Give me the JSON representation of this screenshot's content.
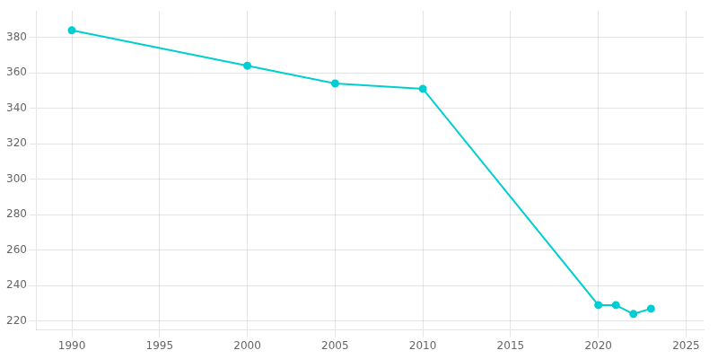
{
  "chart_data": {
    "type": "line",
    "x": [
      1990,
      2000,
      2005,
      2010,
      2020,
      2021,
      2022,
      2023
    ],
    "values": [
      384,
      364,
      354,
      351,
      229,
      229,
      224,
      227
    ],
    "color": "#00CED1",
    "marker": "circle",
    "xlim": [
      1988,
      2026
    ],
    "ylim": [
      215,
      395
    ],
    "xticks": [
      1990,
      1995,
      2000,
      2005,
      2010,
      2015,
      2020,
      2025
    ],
    "yticks": [
      220,
      240,
      260,
      280,
      300,
      320,
      340,
      360,
      380
    ],
    "grid": true
  }
}
